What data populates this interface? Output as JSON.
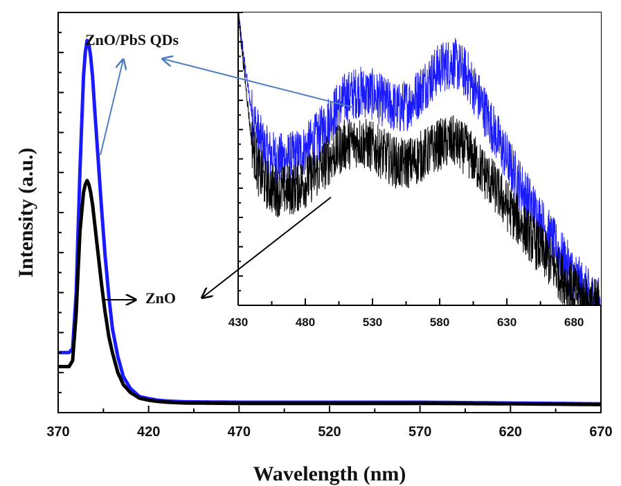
{
  "chart_data": [
    {
      "type": "line",
      "xlabel": "Wavelength (nm)",
      "ylabel": "Intensity (a.u.)",
      "xlim": [
        370,
        670
      ],
      "ylim": [
        0,
        100
      ],
      "x_ticks": [
        "370",
        "420",
        "470",
        "520",
        "570",
        "620",
        "670"
      ],
      "y_ticks_labeled": false,
      "grid": false,
      "series": [
        {
          "name": "ZnO/PbS QDs",
          "color": "#1a1aff",
          "x": [
            370,
            372,
            374,
            376,
            378,
            380,
            382,
            384,
            385,
            386,
            387,
            388,
            389,
            390,
            392,
            394,
            396,
            398,
            400,
            403,
            406,
            410,
            415,
            420,
            425,
            430,
            440,
            470,
            520,
            570,
            620,
            670
          ],
          "y": [
            15,
            15,
            15,
            15,
            16,
            30,
            60,
            84,
            90,
            93,
            92,
            89,
            84,
            77,
            64,
            51,
            39,
            29,
            21,
            14,
            9,
            6,
            4,
            3.5,
            3.1,
            2.9,
            2.7,
            2.6,
            2.6,
            2.6,
            2.4,
            2.2
          ]
        },
        {
          "name": "ZnO",
          "color": "#000000",
          "x": [
            370,
            372,
            374,
            376,
            378,
            380,
            382,
            384,
            385,
            386,
            387,
            388,
            389,
            390,
            392,
            394,
            396,
            398,
            400,
            403,
            406,
            410,
            415,
            420,
            425,
            430,
            440,
            470,
            520,
            570,
            620,
            670
          ],
          "y": [
            11.5,
            11.5,
            11.5,
            11.5,
            13,
            25,
            45,
            55,
            57,
            58,
            57,
            55,
            52,
            48,
            40,
            32,
            25,
            19,
            15,
            10,
            7,
            5,
            3.6,
            3.1,
            2.8,
            2.6,
            2.4,
            2.3,
            2.3,
            2.3,
            2.2,
            2.0
          ]
        }
      ],
      "annotations": [
        "ZnO/PbS QDs",
        "ZnO"
      ]
    },
    {
      "type": "line",
      "role": "inset",
      "xlim": [
        430,
        700
      ],
      "ylim": [
        0,
        100
      ],
      "x_ticks": [
        "430",
        "480",
        "530",
        "580",
        "630",
        "680"
      ],
      "y_ticks_labeled": false,
      "grid": false,
      "series": [
        {
          "name": "ZnO/PbS QDs",
          "color": "#1a1aff",
          "x": [
            430,
            435,
            440,
            445,
            450,
            455,
            460,
            470,
            480,
            490,
            500,
            510,
            520,
            530,
            540,
            550,
            560,
            570,
            580,
            590,
            600,
            610,
            620,
            630,
            640,
            650,
            660,
            670,
            680,
            690,
            700
          ],
          "y": [
            100,
            82,
            66,
            58,
            53,
            51,
            50,
            50.5,
            53,
            58,
            65,
            71,
            73,
            72,
            69,
            67,
            70,
            76,
            81,
            83,
            79,
            70,
            60,
            50,
            41,
            33,
            25,
            17,
            10,
            4,
            0
          ]
        },
        {
          "name": "ZnO",
          "color": "#000000",
          "x": [
            430,
            435,
            440,
            445,
            450,
            455,
            460,
            470,
            480,
            490,
            500,
            510,
            520,
            530,
            540,
            550,
            560,
            570,
            580,
            590,
            600,
            610,
            620,
            630,
            640,
            650,
            660,
            670,
            680,
            690,
            700
          ],
          "y": [
            100,
            78,
            56,
            46,
            42,
            40,
            39,
            39.5,
            42,
            46,
            51,
            55,
            56,
            54,
            51,
            48,
            49,
            52,
            55,
            56,
            53,
            47,
            41,
            34,
            28,
            22,
            16,
            10,
            5,
            1,
            0
          ]
        }
      ]
    }
  ]
}
